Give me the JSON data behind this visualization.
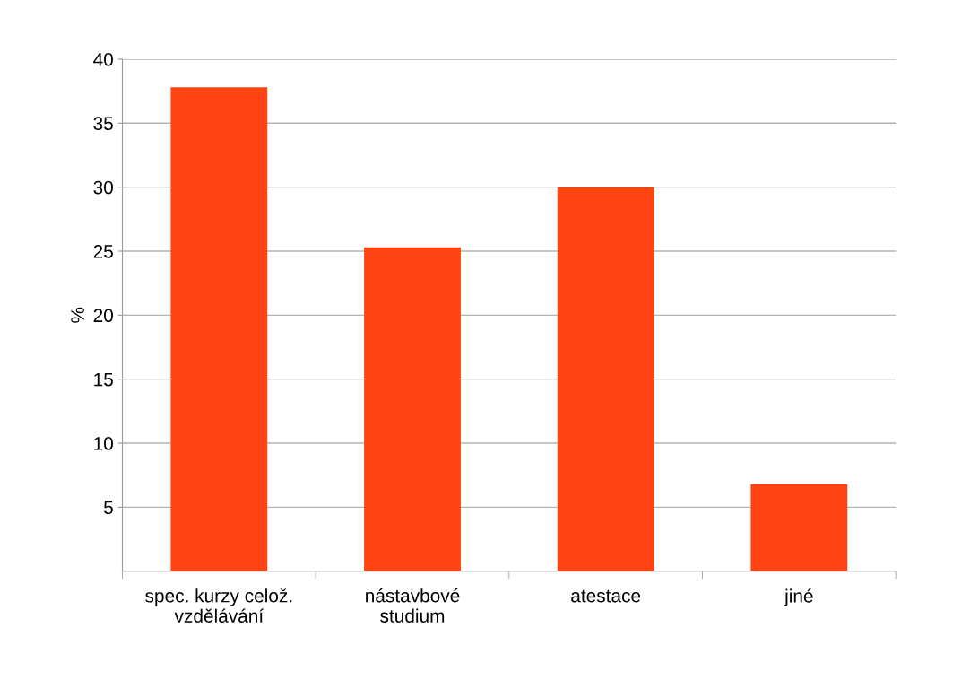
{
  "chart_data": {
    "type": "bar",
    "ylabel": "%",
    "categories": [
      "spec. kurzy celož.\nvzdělávání",
      "nástavbové\nstudium",
      "atestace",
      "jiné"
    ],
    "values": [
      37.8,
      25.3,
      30.0,
      6.8
    ],
    "color": "#ff4412",
    "ylim": [
      0,
      40
    ],
    "yticks": [
      5,
      10,
      15,
      20,
      25,
      30,
      35,
      40
    ],
    "grid": "y",
    "legend": false
  }
}
